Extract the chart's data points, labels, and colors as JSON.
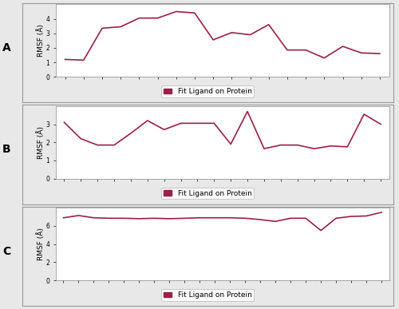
{
  "panel_A": {
    "x": [
      1,
      2,
      3,
      4,
      5,
      6,
      7,
      8,
      9,
      10,
      11,
      12,
      13,
      14,
      15,
      16,
      17,
      18
    ],
    "y": [
      1.2,
      1.15,
      3.35,
      3.45,
      4.05,
      4.05,
      4.5,
      4.4,
      2.55,
      3.05,
      2.9,
      3.6,
      1.85,
      1.85,
      1.3,
      2.1,
      1.65,
      1.6
    ],
    "xlabel_max": 18,
    "ylim": [
      0,
      5
    ],
    "yticks": [
      0,
      1,
      2,
      3,
      4
    ],
    "label": "A"
  },
  "panel_B": {
    "x": [
      1,
      2,
      3,
      4,
      5,
      6,
      7,
      8,
      9,
      10,
      11,
      12,
      13,
      14,
      15,
      16,
      17,
      18,
      19,
      20
    ],
    "y": [
      3.1,
      2.2,
      1.85,
      1.85,
      2.5,
      3.2,
      2.7,
      3.05,
      3.05,
      3.05,
      1.9,
      3.7,
      1.65,
      1.85,
      1.85,
      1.65,
      1.8,
      1.75,
      3.55,
      3.0
    ],
    "xlabel_max": 20,
    "ylim": [
      0,
      4
    ],
    "yticks": [
      0,
      1,
      2,
      3
    ],
    "label": "B"
  },
  "panel_C": {
    "x": [
      1,
      2,
      3,
      4,
      5,
      6,
      7,
      8,
      9,
      10,
      11,
      12,
      13,
      14,
      15,
      16,
      17,
      18,
      19,
      20,
      21,
      22
    ],
    "y": [
      6.9,
      7.15,
      6.9,
      6.85,
      6.85,
      6.8,
      6.85,
      6.8,
      6.85,
      6.9,
      6.9,
      6.9,
      6.85,
      6.7,
      6.5,
      6.85,
      6.85,
      5.5,
      6.85,
      7.05,
      7.1,
      7.5
    ],
    "xlabel_max": 22,
    "ylim": [
      0,
      8
    ],
    "yticks": [
      0,
      2,
      4,
      6
    ],
    "label": "C"
  },
  "line_color": "#9b2045",
  "line_width": 1.2,
  "ylabel": "RMSF (Å)",
  "legend_label": "Fit Ligand on Protein",
  "legend_color": "#9b2045",
  "bg_color": "#e8e8e8",
  "plot_bg": "#ffffff",
  "outer_box_color": "#c8c8c8",
  "panel_label_fontsize": 10,
  "ylabel_fontsize": 6.5,
  "legend_fontsize": 6.5,
  "tick_fontsize": 5.5
}
